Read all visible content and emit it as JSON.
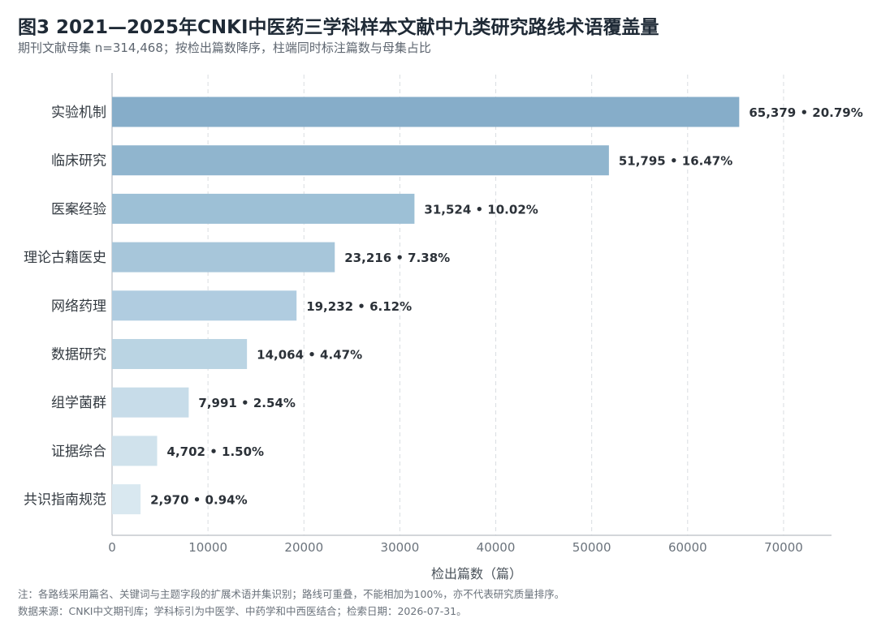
{
  "title": "图3  2021—2025年CNKI中医药三学科样本文献中九类研究路线术语覆盖量",
  "subtitle": "期刊文献母集 n=314,468；按检出篇数降序，柱端同时标注篇数与母集占比",
  "footnotes": {
    "note": "注：各路线采用篇名、关键词与主题字段的扩展术语并集识别；路线可重叠，不能相加为100%，亦不代表研究质量排序。",
    "source": "数据来源：CNKI中文期刊库；学科标引为中医学、中药学和中西医结合；检索日期：2026-07-31。"
  },
  "chart_data": {
    "type": "bar",
    "orientation": "horizontal",
    "categories": [
      "实验机制",
      "临床研究",
      "医案经验",
      "理论古籍医史",
      "网络药理",
      "数据研究",
      "组学菌群",
      "证据综合",
      "共识指南规范"
    ],
    "values": [
      65379,
      51795,
      31524,
      23216,
      19232,
      14064,
      7991,
      4702,
      2970
    ],
    "data_labels": [
      "65,379 • 20.79%",
      "51,795 • 16.47%",
      "31,524 • 10.02%",
      "23,216 • 7.38%",
      "19,232 • 6.12%",
      "14,064 • 4.47%",
      "7,991 • 2.54%",
      "4,702 • 1.50%",
      "2,970 • 0.94%"
    ],
    "colors": [
      "#86adc9",
      "#90b5ce",
      "#9dc0d6",
      "#a7c6da",
      "#b0cce0",
      "#bad4e3",
      "#c7dce9",
      "#d0e2ec",
      "#d9e8f0"
    ],
    "xlabel": "检出篇数（篇）",
    "xlim": [
      0,
      75000
    ],
    "xticks": [
      0,
      10000,
      20000,
      30000,
      40000,
      50000,
      60000,
      70000
    ],
    "xtick_labels": [
      "0",
      "10000",
      "20000",
      "30000",
      "40000",
      "50000",
      "60000",
      "70000"
    ],
    "grid": "vertical dashed",
    "legend": "none"
  }
}
